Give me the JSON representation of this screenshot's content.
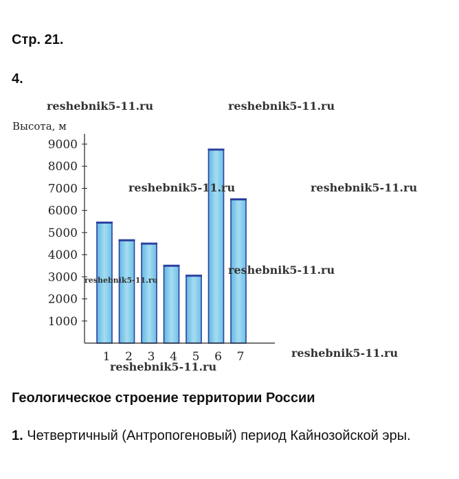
{
  "page": {
    "label": "Стр. 21.",
    "task_number": "4.",
    "section_title": "Геологическое строение территории России",
    "answer": {
      "number": "1.",
      "text": "Четвертичный (Антропогеновый) период Кайнозойской эры."
    },
    "watermark": "reshebnik5-11.ru"
  },
  "chart_data": {
    "type": "bar",
    "title": "",
    "ylabel": "Высота, м",
    "xlabel": "",
    "categories": [
      "1",
      "2",
      "3",
      "4",
      "5",
      "6",
      "7"
    ],
    "values": [
      5450,
      4650,
      4500,
      3500,
      3050,
      8750,
      6500
    ],
    "ylim": [
      0,
      9000
    ],
    "yticks": [
      1000,
      2000,
      3000,
      4000,
      5000,
      6000,
      7000,
      8000,
      9000
    ],
    "bar_color": "#7cc8e8",
    "bar_edge_color": "#2a3f9e",
    "grid": false,
    "legend": "none"
  }
}
